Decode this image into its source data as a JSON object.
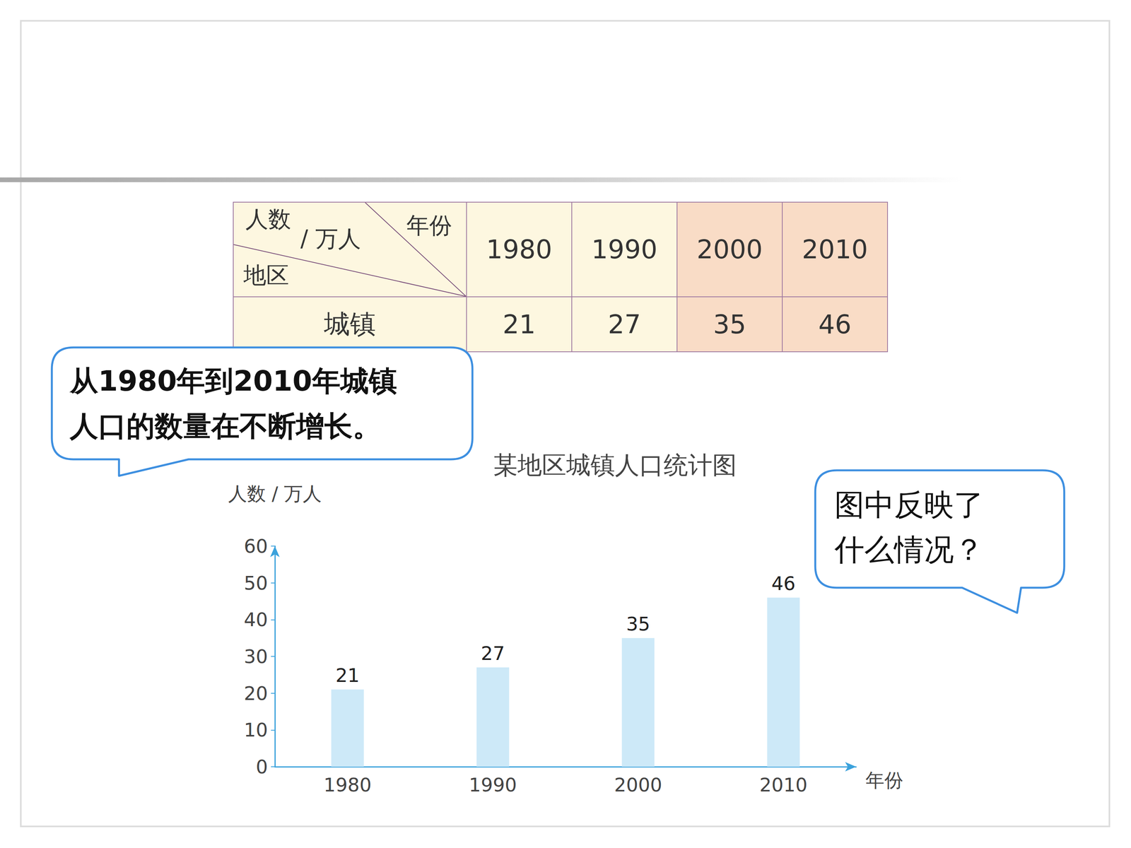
{
  "table": {
    "corner": {
      "value_label": [
        "人数",
        "/ 万人"
      ],
      "column_label": "年份",
      "row_label": "地区"
    },
    "columns": [
      "1980",
      "1990",
      "2000",
      "2010"
    ],
    "rows": [
      [
        "城镇",
        21,
        27,
        35,
        46
      ]
    ]
  },
  "speech_bubbles": [
    [
      "从1980年到2010年城镇",
      "人口的数量在不断增长。"
    ],
    [
      "图中反映了",
      "什么情况？"
    ]
  ],
  "chart_data": {
    "type": "bar",
    "title": "某地区城镇人口统计图",
    "x_label": "年份",
    "y_label": "人数 / 万人",
    "categories": [
      "1980",
      "1990",
      "2000",
      "2010"
    ],
    "values": [
      21,
      27,
      35,
      46
    ],
    "color": "#cde9f8",
    "ylim": [
      0,
      60
    ],
    "yticks": [
      0,
      10,
      20,
      30,
      40,
      50,
      60
    ],
    "grid": false,
    "data_labels": true
  }
}
